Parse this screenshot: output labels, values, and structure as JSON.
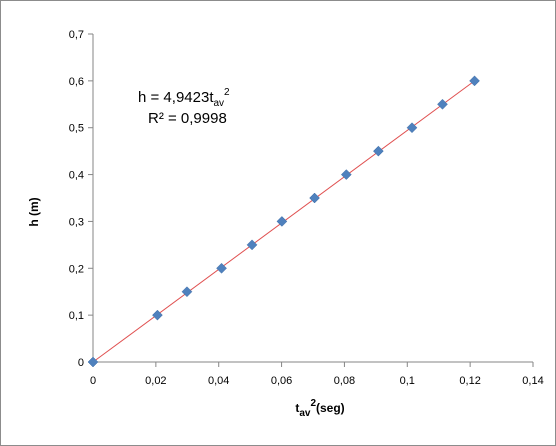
{
  "chart_data": {
    "type": "scatter",
    "title": "",
    "xlabel": {
      "base": "t",
      "subscript": "av",
      "superscript": "2",
      "suffix": "(seg)"
    },
    "ylabel": "h (m)",
    "xlim": [
      0,
      0.14
    ],
    "ylim": [
      0,
      0.7
    ],
    "x_tick_labels": [
      "0",
      "0,02",
      "0,04",
      "0,06",
      "0,08",
      "0,1",
      "0,12",
      "0,14"
    ],
    "y_tick_labels": [
      "0",
      "0,1",
      "0,2",
      "0,3",
      "0,4",
      "0,5",
      "0,6",
      "0,7"
    ],
    "grid": false,
    "legend": "none",
    "series": [
      {
        "marker": "diamond",
        "color": "#4f81bd",
        "points": [
          {
            "x": 0,
            "y": 0
          },
          {
            "x": 0.0205,
            "y": 0.1
          },
          {
            "x": 0.0299,
            "y": 0.15
          },
          {
            "x": 0.0409,
            "y": 0.2
          },
          {
            "x": 0.0506,
            "y": 0.25
          },
          {
            "x": 0.0601,
            "y": 0.3
          },
          {
            "x": 0.0705,
            "y": 0.35
          },
          {
            "x": 0.0806,
            "y": 0.4
          },
          {
            "x": 0.0908,
            "y": 0.45
          },
          {
            "x": 0.1015,
            "y": 0.5
          },
          {
            "x": 0.1112,
            "y": 0.55
          },
          {
            "x": 0.1214,
            "y": 0.6
          }
        ]
      }
    ],
    "trendline": {
      "type": "power",
      "coefficient": 4.9423,
      "exponent": 1,
      "color": "#e05050"
    },
    "annotation": {
      "equation_prefix": "h = 4,9423t",
      "equation_subscript": "av",
      "equation_superscript": "2",
      "r_squared": "R² = 0,9998"
    }
  }
}
